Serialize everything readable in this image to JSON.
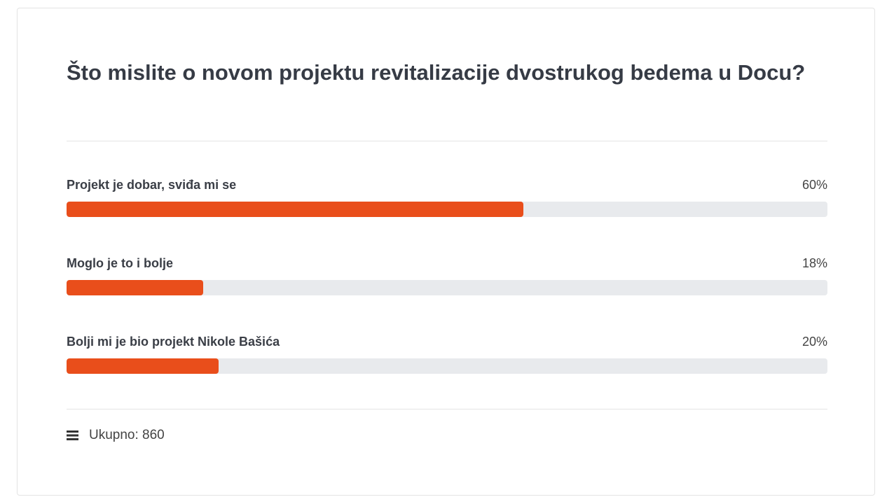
{
  "poll": {
    "question": "Što mislite o novom projektu revitalizacije dvostrukog bedema u Docu?",
    "accent_color": "#e94e1b",
    "options": [
      {
        "label": "Projekt je dobar, sviđa mi se",
        "percent_label": "60%",
        "percent": 60
      },
      {
        "label": "Moglo je to i bolje",
        "percent_label": "18%",
        "percent": 18
      },
      {
        "label": "Bolji mi je bio projekt Nikole Bašića",
        "percent_label": "20%",
        "percent": 20
      }
    ],
    "footer": {
      "icon": "menu-icon",
      "total_label": "Ukupno: 860"
    }
  }
}
